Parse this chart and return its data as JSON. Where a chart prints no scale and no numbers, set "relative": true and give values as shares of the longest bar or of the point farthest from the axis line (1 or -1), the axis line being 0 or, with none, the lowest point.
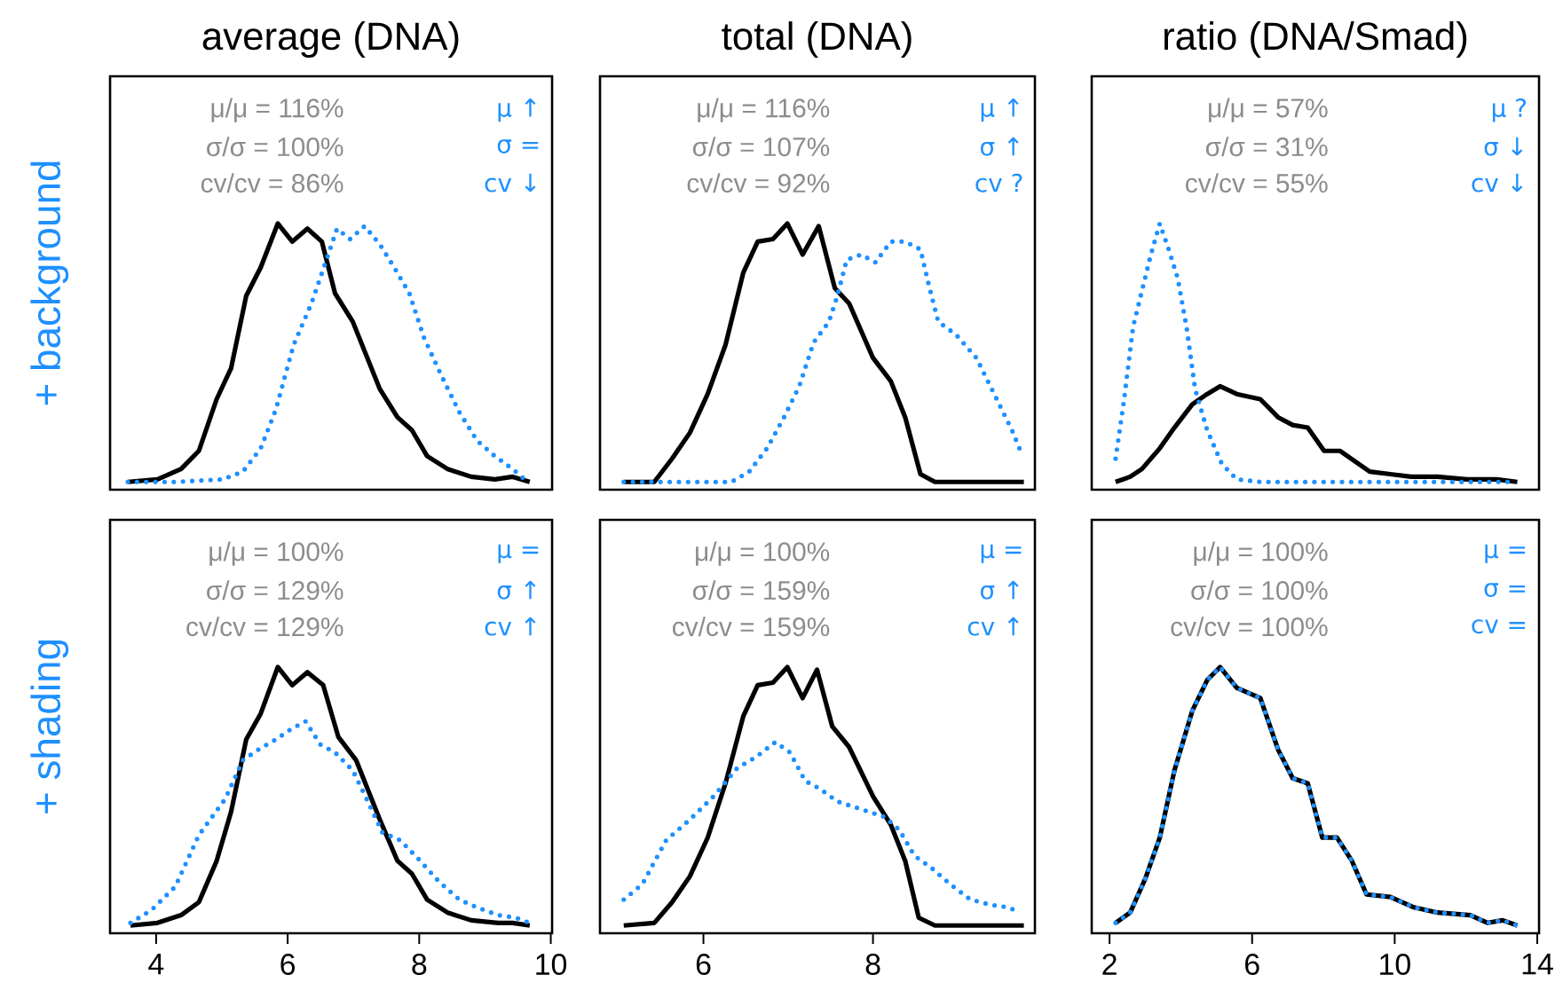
{
  "chart_data": [
    {
      "type": "line",
      "title": "average (DNA)",
      "ylabel": "+ background",
      "relative": true,
      "xlim": [
        3.3,
        10.02
      ],
      "tick_labels": false,
      "annotations": [
        "μ/μ = 116%",
        "σ/σ = 100%",
        "cv/cv = 86%",
        "μ ↑",
        "σ =",
        "cv ↓"
      ],
      "series": [
        {
          "color": "#000000",
          "line_style": "solid",
          "x": [
            3.57,
            4.02,
            4.38,
            4.65,
            4.92,
            5.14,
            5.37,
            5.59,
            5.85,
            6.07,
            6.3,
            6.52,
            6.72,
            6.99,
            7.4,
            7.67,
            7.89,
            8.12,
            8.43,
            8.79,
            9.15,
            9.42,
            9.68
          ],
          "values": [
            0,
            0.01,
            0.05,
            0.12,
            0.32,
            0.44,
            0.72,
            0.83,
            1.0,
            0.93,
            0.98,
            0.93,
            0.73,
            0.62,
            0.36,
            0.25,
            0.2,
            0.1,
            0.05,
            0.02,
            0.01,
            0.02,
            0
          ]
        },
        {
          "color": "#1e90ff",
          "line_style": "dotted",
          "x": [
            3.57,
            4.29,
            5.01,
            5.32,
            5.59,
            5.82,
            6.09,
            6.36,
            6.59,
            6.75,
            6.95,
            7.17,
            7.4,
            7.62,
            7.85,
            8.07,
            8.34,
            8.61,
            8.88,
            9.15,
            9.42,
            9.65
          ],
          "values": [
            0,
            0,
            0.01,
            0.04,
            0.13,
            0.28,
            0.53,
            0.69,
            0.86,
            0.98,
            0.94,
            0.99,
            0.92,
            0.83,
            0.73,
            0.56,
            0.41,
            0.27,
            0.16,
            0.1,
            0.05,
            0
          ]
        }
      ]
    },
    {
      "type": "line",
      "title": "total (DNA)",
      "relative": true,
      "xlim": [
        4.78,
        9.91
      ],
      "tick_labels": false,
      "annotations": [
        "μ/μ = 116%",
        "σ/σ = 107%",
        "cv/cv = 92%",
        "μ ↑",
        "σ ↑",
        "cv ?"
      ],
      "series": [
        {
          "color": "#000000",
          "line_style": "solid",
          "x": [
            5.06,
            5.42,
            5.63,
            5.84,
            6.05,
            6.26,
            6.47,
            6.64,
            6.82,
            6.99,
            7.17,
            7.36,
            7.55,
            7.72,
            8.0,
            8.21,
            8.38,
            8.56,
            8.73,
            9.25,
            9.78
          ],
          "values": [
            0,
            0,
            0.09,
            0.19,
            0.34,
            0.53,
            0.81,
            0.93,
            0.94,
            1.0,
            0.88,
            0.99,
            0.75,
            0.69,
            0.48,
            0.39,
            0.25,
            0.03,
            0,
            0,
            0
          ]
        },
        {
          "color": "#1e90ff",
          "line_style": "dotted",
          "x": [
            5.06,
            5.77,
            6.33,
            6.54,
            6.75,
            6.95,
            7.13,
            7.3,
            7.48,
            7.58,
            7.69,
            7.86,
            8.03,
            8.21,
            8.38,
            8.56,
            8.66,
            8.77,
            8.98,
            9.22,
            9.46,
            9.64,
            9.74
          ],
          "values": [
            0,
            0,
            0,
            0.04,
            0.13,
            0.25,
            0.37,
            0.54,
            0.62,
            0.72,
            0.86,
            0.88,
            0.85,
            0.93,
            0.93,
            0.9,
            0.76,
            0.62,
            0.57,
            0.48,
            0.32,
            0.2,
            0.12
          ]
        }
      ]
    },
    {
      "type": "line",
      "title": "ratio (DNA/Smad)",
      "relative": true,
      "xlim": [
        1.5,
        14.05
      ],
      "tick_labels": false,
      "annotations": [
        "μ/μ = 57%",
        "σ/σ = 31%",
        "cv/cv = 55%",
        "μ ?",
        "σ ↓",
        "cv ↓"
      ],
      "series": [
        {
          "color": "#000000",
          "line_style": "solid",
          "x": [
            2.17,
            2.58,
            2.91,
            3.41,
            3.82,
            4.32,
            4.74,
            5.1,
            5.57,
            6.23,
            6.73,
            7.14,
            7.56,
            8.02,
            8.47,
            8.88,
            9.3,
            9.88,
            10.46,
            11.2,
            12.03,
            12.86,
            13.44
          ],
          "values": [
            0,
            0.02,
            0.05,
            0.13,
            0.21,
            0.3,
            0.34,
            0.37,
            0.34,
            0.32,
            0.25,
            0.22,
            0.21,
            0.12,
            0.12,
            0.08,
            0.04,
            0.03,
            0.02,
            0.02,
            0.01,
            0.01,
            0
          ]
        },
        {
          "color": "#1e90ff",
          "line_style": "dotted",
          "x": [
            2.17,
            2.41,
            2.66,
            2.91,
            3.16,
            3.41,
            3.66,
            3.91,
            4.16,
            4.4,
            4.74,
            5.15,
            5.57,
            6.23,
            7.89,
            9.55,
            11.2,
            13.19
          ],
          "values": [
            0.09,
            0.32,
            0.6,
            0.74,
            0.88,
            1.0,
            0.9,
            0.79,
            0.6,
            0.36,
            0.2,
            0.07,
            0.01,
            0,
            0,
            0,
            0,
            0
          ]
        }
      ]
    },
    {
      "type": "line",
      "ylabel": "+ shading",
      "relative": true,
      "xlim": [
        3.3,
        10.02
      ],
      "xticks": [
        4,
        6,
        8,
        10
      ],
      "tick_labels": "x",
      "annotations": [
        "μ/μ = 100%",
        "σ/σ = 129%",
        "cv/cv = 129%",
        "μ =",
        "σ ↑",
        "cv ↑"
      ],
      "series": [
        {
          "color": "#000000",
          "line_style": "solid",
          "x": [
            3.61,
            4.02,
            4.38,
            4.65,
            4.92,
            5.14,
            5.37,
            5.59,
            5.85,
            6.07,
            6.3,
            6.54,
            6.77,
            7.04,
            7.4,
            7.67,
            7.89,
            8.12,
            8.43,
            8.79,
            9.2,
            9.42,
            9.68
          ],
          "values": [
            0,
            0.01,
            0.04,
            0.09,
            0.25,
            0.44,
            0.72,
            0.82,
            1.0,
            0.93,
            0.98,
            0.93,
            0.73,
            0.64,
            0.41,
            0.25,
            0.2,
            0.1,
            0.05,
            0.02,
            0.01,
            0.01,
            0
          ]
        },
        {
          "color": "#1e90ff",
          "line_style": "dotted",
          "x": [
            3.61,
            3.93,
            4.29,
            4.65,
            5.05,
            5.32,
            5.55,
            5.82,
            6.05,
            6.27,
            6.5,
            6.72,
            6.99,
            7.22,
            7.44,
            7.71,
            7.98,
            8.3,
            8.61,
            8.88,
            9.2,
            9.47,
            9.68
          ],
          "values": [
            0.01,
            0.06,
            0.15,
            0.35,
            0.49,
            0.64,
            0.68,
            0.72,
            0.76,
            0.79,
            0.7,
            0.67,
            0.6,
            0.48,
            0.36,
            0.33,
            0.26,
            0.17,
            0.1,
            0.07,
            0.04,
            0.03,
            0.01
          ]
        }
      ]
    },
    {
      "type": "line",
      "relative": true,
      "xlim": [
        4.78,
        9.91
      ],
      "xticks": [
        6,
        8
      ],
      "tick_labels": "x",
      "annotations": [
        "μ/μ = 100%",
        "σ/σ = 159%",
        "cv/cv = 159%",
        "μ =",
        "σ ↑",
        "cv ↑"
      ],
      "series": [
        {
          "color": "#000000",
          "line_style": "solid",
          "x": [
            5.06,
            5.42,
            5.63,
            5.84,
            6.05,
            6.26,
            6.47,
            6.64,
            6.82,
            6.99,
            7.17,
            7.34,
            7.52,
            7.72,
            8.0,
            8.21,
            8.38,
            8.54,
            8.73,
            9.25,
            9.78
          ],
          "values": [
            0,
            0.01,
            0.09,
            0.19,
            0.34,
            0.55,
            0.81,
            0.93,
            0.94,
            1.0,
            0.88,
            0.99,
            0.77,
            0.69,
            0.5,
            0.39,
            0.25,
            0.03,
            0,
            0,
            0
          ]
        },
        {
          "color": "#1e90ff",
          "line_style": "dotted",
          "x": [
            5.06,
            5.28,
            5.56,
            5.84,
            6.12,
            6.4,
            6.61,
            6.85,
            7.02,
            7.2,
            7.37,
            7.58,
            7.86,
            8.14,
            8.31,
            8.49,
            8.7,
            8.91,
            9.15,
            9.39,
            9.6,
            9.73
          ],
          "values": [
            0.1,
            0.16,
            0.33,
            0.41,
            0.5,
            0.61,
            0.65,
            0.71,
            0.67,
            0.56,
            0.53,
            0.48,
            0.45,
            0.42,
            0.37,
            0.27,
            0.22,
            0.16,
            0.1,
            0.08,
            0.07,
            0.05
          ]
        }
      ]
    },
    {
      "type": "line",
      "relative": true,
      "xlim": [
        1.5,
        14.05
      ],
      "xticks": [
        2,
        6,
        10,
        14
      ],
      "tick_labels": "x",
      "annotations": [
        "μ/μ = 100%",
        "σ/σ = 100%",
        "cv/cv = 100%",
        "μ =",
        "σ =",
        "cv ="
      ],
      "series": [
        {
          "color": "#000000",
          "line_style": "solid",
          "x": [
            2.17,
            2.58,
            3.0,
            3.41,
            3.82,
            4.32,
            4.74,
            5.1,
            5.57,
            6.23,
            6.73,
            7.14,
            7.56,
            7.97,
            8.38,
            8.8,
            9.21,
            9.88,
            10.54,
            11.2,
            12.12,
            12.61,
            13.03,
            13.44
          ],
          "values": [
            0.01,
            0.05,
            0.18,
            0.34,
            0.6,
            0.83,
            0.95,
            1.0,
            0.92,
            0.88,
            0.68,
            0.57,
            0.55,
            0.34,
            0.34,
            0.25,
            0.12,
            0.11,
            0.07,
            0.05,
            0.04,
            0.01,
            0.02,
            0
          ]
        },
        {
          "color": "#1e90ff",
          "line_style": "dotted",
          "x": [
            2.17,
            2.58,
            3.0,
            3.41,
            3.82,
            4.32,
            4.74,
            5.1,
            5.57,
            6.23,
            6.73,
            7.14,
            7.56,
            7.97,
            8.38,
            8.8,
            9.21,
            9.88,
            10.54,
            11.2,
            12.12,
            12.61,
            13.03,
            13.44
          ],
          "values": [
            0.01,
            0.05,
            0.18,
            0.34,
            0.6,
            0.83,
            0.95,
            1.0,
            0.92,
            0.88,
            0.68,
            0.57,
            0.55,
            0.34,
            0.34,
            0.25,
            0.12,
            0.11,
            0.07,
            0.05,
            0.04,
            0.01,
            0.02,
            0
          ]
        }
      ]
    }
  ]
}
